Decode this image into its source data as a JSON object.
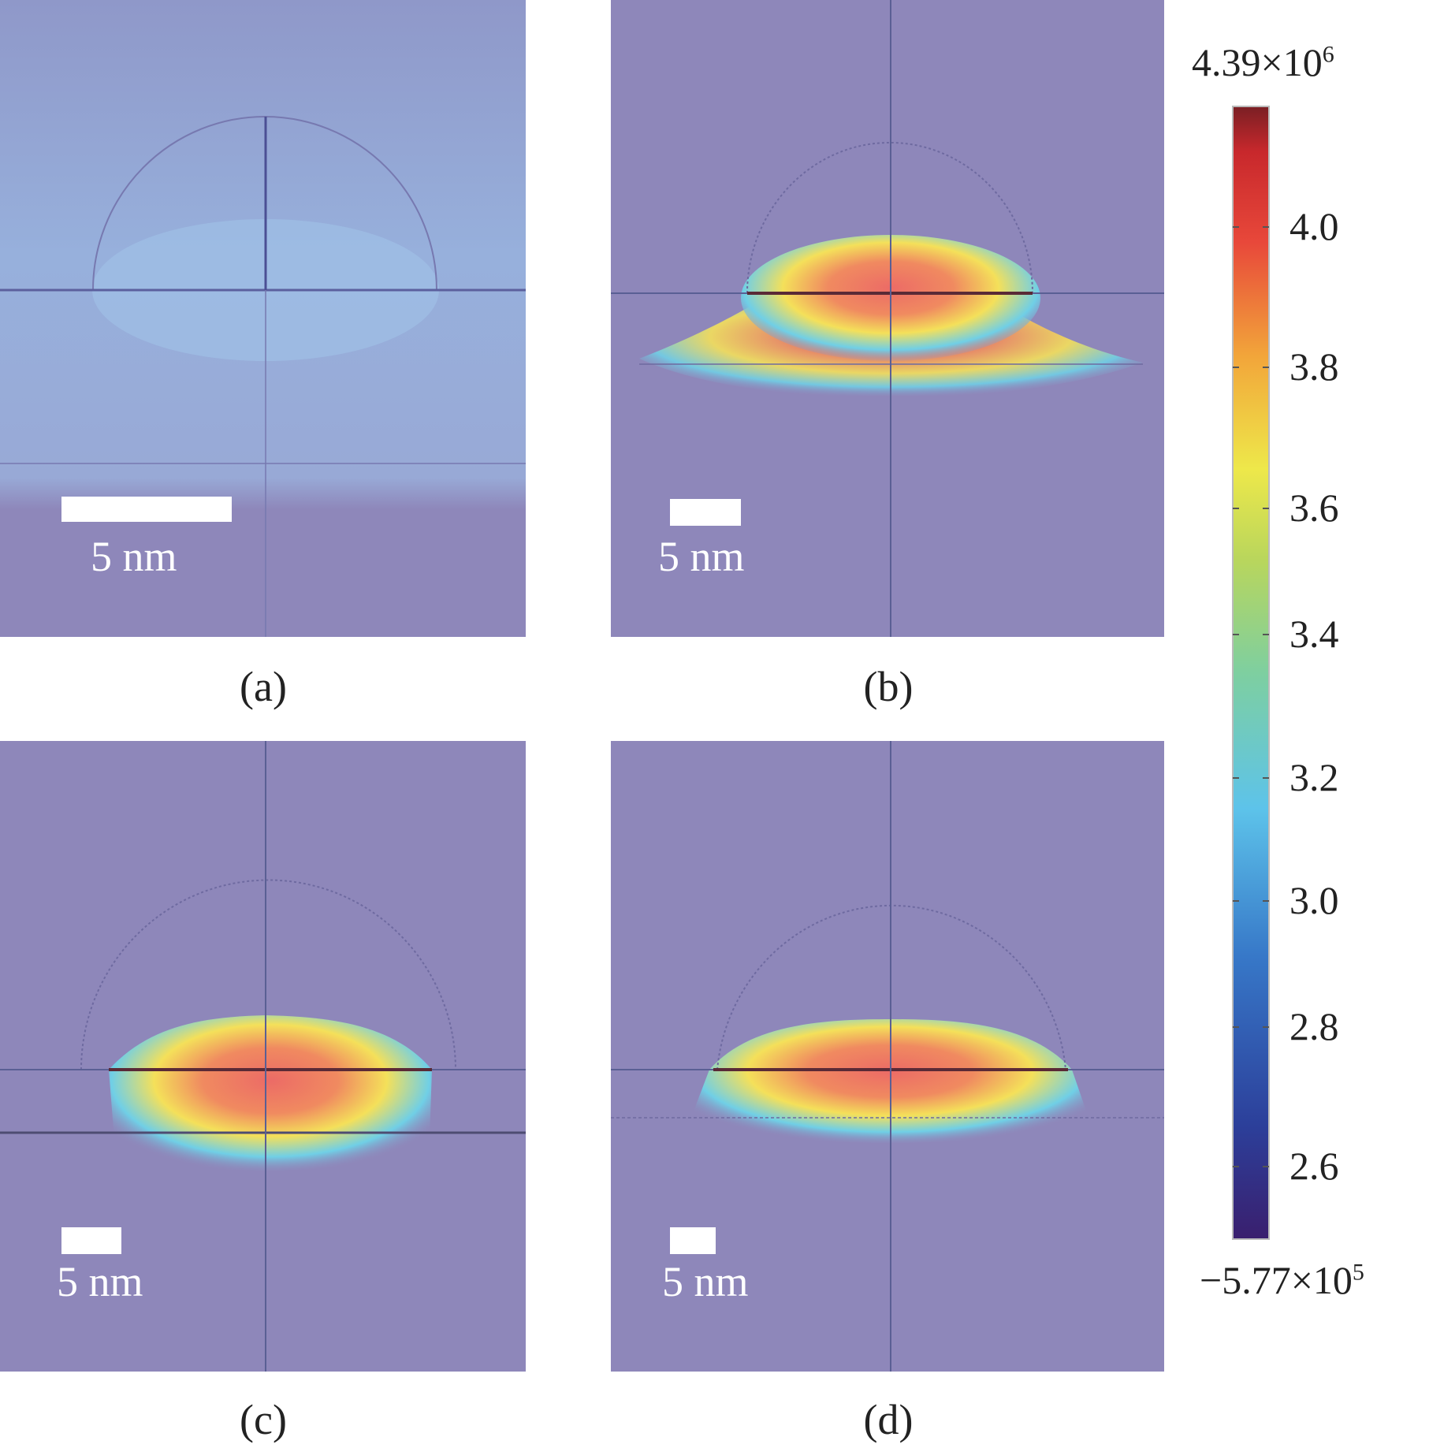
{
  "panels": [
    {
      "id": "a",
      "label": "(a)",
      "scalebar": "5 nm"
    },
    {
      "id": "b",
      "label": "(b)",
      "scalebar": "5 nm"
    },
    {
      "id": "c",
      "label": "(c)",
      "scalebar": "5 nm"
    },
    {
      "id": "d",
      "label": "(d)",
      "scalebar": "5 nm"
    }
  ],
  "colorbar": {
    "max": {
      "mantissa": "4.39",
      "base": "×10",
      "exp": "6"
    },
    "min": {
      "mantissa": "−5.77",
      "base": "×10",
      "exp": "5"
    },
    "ticks": [
      "4.0",
      "3.8",
      "3.6",
      "3.4",
      "3.2",
      "3.0",
      "2.8",
      "2.6"
    ]
  },
  "colors": {
    "background": "#8e87ba",
    "panel_a_tint": "#98a6d4",
    "hot": "#e8483a",
    "warm": "#f2e24a",
    "cool": "#5cc4e8"
  }
}
